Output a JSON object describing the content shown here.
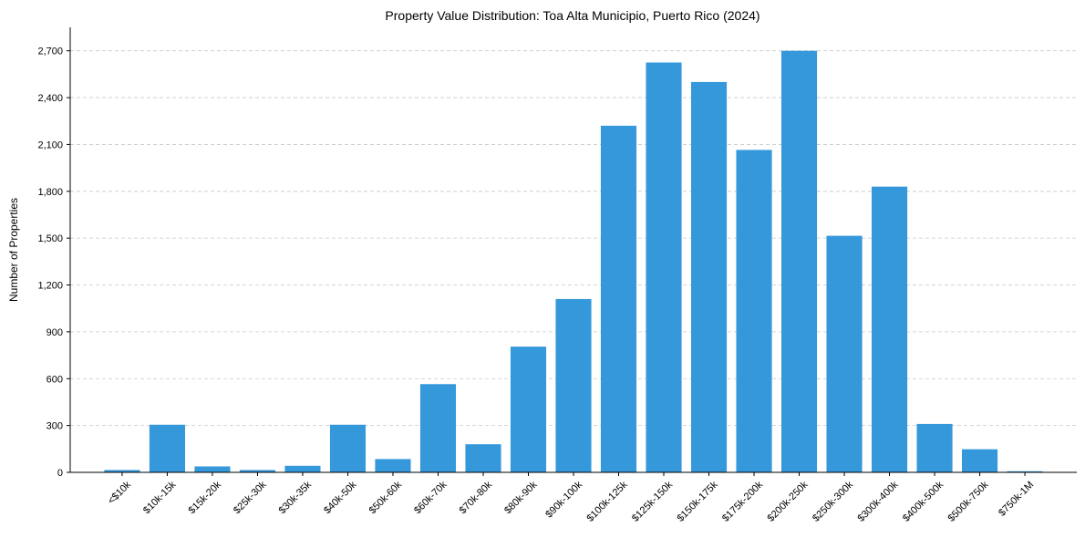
{
  "chart_data": {
    "type": "bar",
    "title": "Property Value Distribution: Toa Alta Municipio, Puerto Rico (2024)",
    "xlabel": "",
    "ylabel": "Number of Properties",
    "ylim": [
      0,
      2850
    ],
    "yticks": [
      0,
      300,
      600,
      900,
      1200,
      1500,
      1800,
      2100,
      2400,
      2700
    ],
    "ytick_labels": [
      "0",
      "300",
      "600",
      "900",
      "1,200",
      "1,500",
      "1,800",
      "2,100",
      "2,400",
      "2,700"
    ],
    "grid": "horizontal dashed",
    "categories": [
      "<$10k",
      "$10k-15k",
      "$15k-20k",
      "$25k-30k",
      "$30k-35k",
      "$40k-50k",
      "$50k-60k",
      "$60k-70k",
      "$70k-80k",
      "$80k-90k",
      "$90k-100k",
      "$100k-125k",
      "$125k-150k",
      "$150k-175k",
      "$175k-200k",
      "$200k-250k",
      "$250k-300k",
      "$300k-400k",
      "$400k-500k",
      "$500k-750k",
      "$750k-1M"
    ],
    "values": [
      15,
      305,
      38,
      15,
      42,
      305,
      85,
      565,
      180,
      805,
      1110,
      2220,
      2625,
      2500,
      2065,
      2700,
      1515,
      1830,
      310,
      148,
      7
    ],
    "colors": {
      "bar": "#3498db",
      "grid": "#c8c8c8",
      "axis": "#000000"
    }
  }
}
